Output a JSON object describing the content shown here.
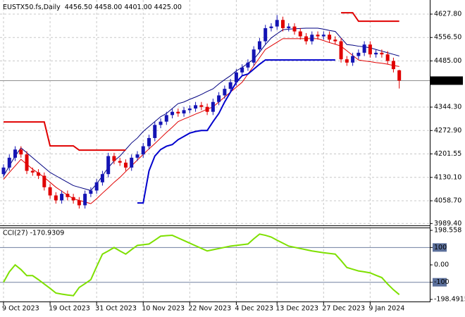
{
  "chart_data": {
    "type": "candlestick",
    "title": "EUSTX50.fs,Daily",
    "ohlc_label": "4456.50 4458.00 4401.00 4425.00",
    "categories": [
      "9 Oct 2023",
      null,
      null,
      null,
      null,
      null,
      null,
      null,
      "19 Oct 2023",
      null,
      null,
      null,
      null,
      null,
      null,
      null,
      "31 Oct 2023",
      null,
      null,
      null,
      null,
      null,
      null,
      null,
      "10 Nov 2023",
      null,
      null,
      null,
      null,
      null,
      null,
      null,
      "22 Nov 2023",
      null,
      null,
      null,
      null,
      null,
      null,
      null,
      "4 Dec 2023",
      null,
      null,
      null,
      null,
      null,
      null,
      "13 Dec 2023",
      null,
      null,
      null,
      null,
      null,
      null,
      null,
      "27 Dec 2023",
      null,
      null,
      null,
      null,
      null,
      null,
      null,
      "9 Jan 2024",
      null,
      null,
      null,
      null,
      null
    ],
    "open": [
      4140,
      4160,
      4190,
      4215,
      4200,
      4150,
      4145,
      4135,
      4100,
      4075,
      4060,
      4080,
      4070,
      4060,
      4045,
      4080,
      4090,
      4115,
      4140,
      4195,
      4180,
      4175,
      4160,
      4190,
      4200,
      4225,
      4250,
      4290,
      4300,
      4320,
      4330,
      4325,
      4335,
      4340,
      4350,
      4345,
      4330,
      4360,
      4380,
      4400,
      4420,
      4450,
      4465,
      4480,
      4520,
      4545,
      4585,
      4590,
      4610,
      4585,
      4590,
      4575,
      4560,
      4545,
      4565,
      4560,
      4565,
      4550,
      4545,
      4490,
      4480,
      4500,
      4510,
      4535,
      4505,
      4510,
      4505,
      4485,
      4456.5
    ],
    "high": [
      4170,
      4200,
      4225,
      4225,
      4210,
      4160,
      4155,
      4145,
      4110,
      4085,
      4090,
      4090,
      4080,
      4070,
      4090,
      4100,
      4125,
      4150,
      4205,
      4205,
      4190,
      4185,
      4200,
      4210,
      4235,
      4260,
      4300,
      4310,
      4330,
      4340,
      4340,
      4345,
      4350,
      4360,
      4360,
      4355,
      4370,
      4390,
      4410,
      4430,
      4460,
      4475,
      4490,
      4530,
      4555,
      4595,
      4600,
      4625,
      4620,
      4600,
      4600,
      4585,
      4570,
      4575,
      4575,
      4575,
      4575,
      4560,
      4555,
      4500,
      4510,
      4520,
      4545,
      4545,
      4520,
      4520,
      4515,
      4495,
      4458
    ],
    "low": [
      4130,
      4150,
      4180,
      4190,
      4140,
      4135,
      4125,
      4090,
      4065,
      4050,
      4050,
      4060,
      4050,
      4035,
      4035,
      4070,
      4080,
      4105,
      4130,
      4170,
      4165,
      4150,
      4150,
      4180,
      4190,
      4215,
      4240,
      4280,
      4290,
      4310,
      4315,
      4315,
      4325,
      4330,
      4335,
      4320,
      4320,
      4350,
      4370,
      4390,
      4410,
      4440,
      4455,
      4470,
      4510,
      4535,
      4575,
      4580,
      4575,
      4575,
      4565,
      4550,
      4535,
      4535,
      4550,
      4550,
      4540,
      4535,
      4480,
      4470,
      4470,
      4490,
      4500,
      4495,
      4495,
      4495,
      4475,
      4450,
      4401
    ],
    "close": [
      4160,
      4190,
      4215,
      4200,
      4150,
      4145,
      4135,
      4100,
      4075,
      4060,
      4080,
      4070,
      4060,
      4045,
      4080,
      4090,
      4115,
      4140,
      4195,
      4180,
      4175,
      4160,
      4190,
      4200,
      4225,
      4250,
      4290,
      4300,
      4320,
      4330,
      4325,
      4335,
      4340,
      4350,
      4345,
      4330,
      4360,
      4380,
      4400,
      4420,
      4450,
      4465,
      4480,
      4520,
      4545,
      4585,
      4590,
      4610,
      4585,
      4590,
      4575,
      4560,
      4545,
      4565,
      4560,
      4565,
      4550,
      4545,
      4490,
      4480,
      4500,
      4510,
      4535,
      4505,
      4510,
      4505,
      4485,
      4460,
      4425
    ],
    "up_color": "#1414b4",
    "down_color": "#e00000",
    "lines": [
      {
        "color": "#000080",
        "values": [
          4134,
          4165,
          4195,
          4220,
          4205,
          4190,
          4175,
          4160,
          4145,
          4135,
          4125,
          4115,
          4105,
          4100,
          4095,
          4090,
          4110,
          4135,
          4160,
          4180,
          4195,
          4215,
          4235,
          4250,
          4270,
          4285,
          4300,
          4315,
          4325,
          4340,
          4355,
          4360,
          4368,
          4375,
          4383,
          4392,
          4400,
          4415,
          4428,
          4440,
          4455,
          4465,
          4478,
          4490,
          4512,
          4535,
          4555,
          4568,
          4580,
          4582,
          4583,
          4584,
          4585,
          4585,
          4585,
          4582,
          4578,
          4575,
          4555,
          4535,
          4533,
          4530,
          4528,
          4525,
          4520,
          4515,
          4510,
          4505,
          4500
        ]
      },
      {
        "color": "#e00000",
        "values": [
          4124,
          4145,
          4165,
          4185,
          4170,
          4155,
          4143,
          4130,
          4115,
          4100,
          4088,
          4076,
          4065,
          4060,
          4055,
          4050,
          4065,
          4082,
          4098,
          4115,
          4130,
          4148,
          4165,
          4183,
          4200,
          4217,
          4233,
          4250,
          4267,
          4283,
          4300,
          4308,
          4315,
          4323,
          4330,
          4338,
          4345,
          4360,
          4375,
          4390,
          4405,
          4420,
          4445,
          4470,
          4495,
          4520,
          4531,
          4542,
          4553,
          4553,
          4553,
          4553,
          4553,
          4553,
          4553,
          4547,
          4541,
          4536,
          4530,
          4516,
          4502,
          4488,
          4485,
          4483,
          4480,
          4478,
          4475,
          4471,
          4468
        ]
      },
      {
        "color": "#e00000",
        "values": [
          4299,
          4299,
          4299,
          4299,
          4299,
          4299,
          4299,
          4299,
          4226,
          4226,
          4226,
          4226,
          4226,
          4213,
          4213,
          4213,
          4213,
          4213,
          4213,
          4213,
          4213,
          4213,
          null,
          null,
          null,
          null,
          null,
          null,
          null,
          null,
          null,
          null,
          null,
          null,
          null,
          null,
          null,
          null,
          null,
          null,
          null,
          null,
          null,
          null,
          null,
          null,
          null,
          null,
          null,
          null,
          null,
          null,
          null,
          null,
          null,
          null,
          null,
          null,
          4632,
          4632,
          4632,
          4606,
          4606,
          4606,
          4606,
          4606,
          4606,
          4606,
          4606
        ]
      },
      {
        "color": "#0000cd",
        "values": [
          null,
          null,
          null,
          null,
          null,
          null,
          null,
          null,
          null,
          null,
          null,
          null,
          null,
          null,
          null,
          null,
          null,
          null,
          null,
          null,
          null,
          null,
          null,
          4052,
          4052,
          4150,
          4195,
          4215,
          4225,
          4230,
          4245,
          4255,
          4265,
          4270,
          4273,
          4273,
          4300,
          4325,
          4360,
          4390,
          4420,
          4440,
          4445,
          4460,
          4475,
          4488,
          4488,
          4488,
          4488,
          4488,
          4488,
          4488,
          4488,
          4488,
          4488,
          4488,
          4488,
          4488,
          null,
          null,
          null,
          null,
          null,
          null,
          null,
          null,
          null,
          null,
          null
        ]
      }
    ],
    "ylim": [
      3987.9,
      4666.5
    ],
    "yticks": [
      {
        "value": 4627.8,
        "label": "4627.80"
      },
      {
        "value": 4556.5,
        "label": "4556.50"
      },
      {
        "value": 4485,
        "label": "4485.00"
      },
      {
        "value": 4344.3,
        "label": "4344.30"
      },
      {
        "value": 4272.9,
        "label": "4272.90"
      },
      {
        "value": 4201.55,
        "label": "4201.55"
      },
      {
        "value": 4130.1,
        "label": "4130.10"
      },
      {
        "value": 4058.7,
        "label": "4058.70"
      },
      {
        "value": 3989.4,
        "label": "3989.40"
      }
    ],
    "current_price": {
      "value": 4425,
      "label": "4425.00"
    },
    "grid": true,
    "indicator": {
      "type": "line",
      "title": "CCI(27) -170.9309",
      "color": "#7ee000",
      "values": [
        -100,
        -40,
        0,
        -27,
        -62,
        -62,
        -85,
        -110,
        -135,
        -162,
        -168,
        -173,
        -177,
        -130,
        -108,
        -85,
        -10,
        62,
        80,
        100,
        80,
        62,
        88,
        112,
        116,
        120,
        142,
        165,
        168,
        170,
        155,
        140,
        125,
        110,
        95,
        80,
        87,
        94,
        101,
        108,
        112,
        116,
        120,
        150,
        177,
        170,
        160,
        142,
        125,
        108,
        101,
        94,
        87,
        80,
        75,
        70,
        66,
        62,
        25,
        -15,
        -25,
        -35,
        -40,
        -46,
        -60,
        -73,
        -110,
        -143,
        -170.9309
      ],
      "ylim": [
        -198.4915,
        198.558
      ],
      "yticks": [
        198.558,
        100,
        {
          "value": 0,
          "label": "0.00"
        },
        -100,
        -198.4915
      ],
      "levels": [
        100,
        -100
      ]
    }
  }
}
